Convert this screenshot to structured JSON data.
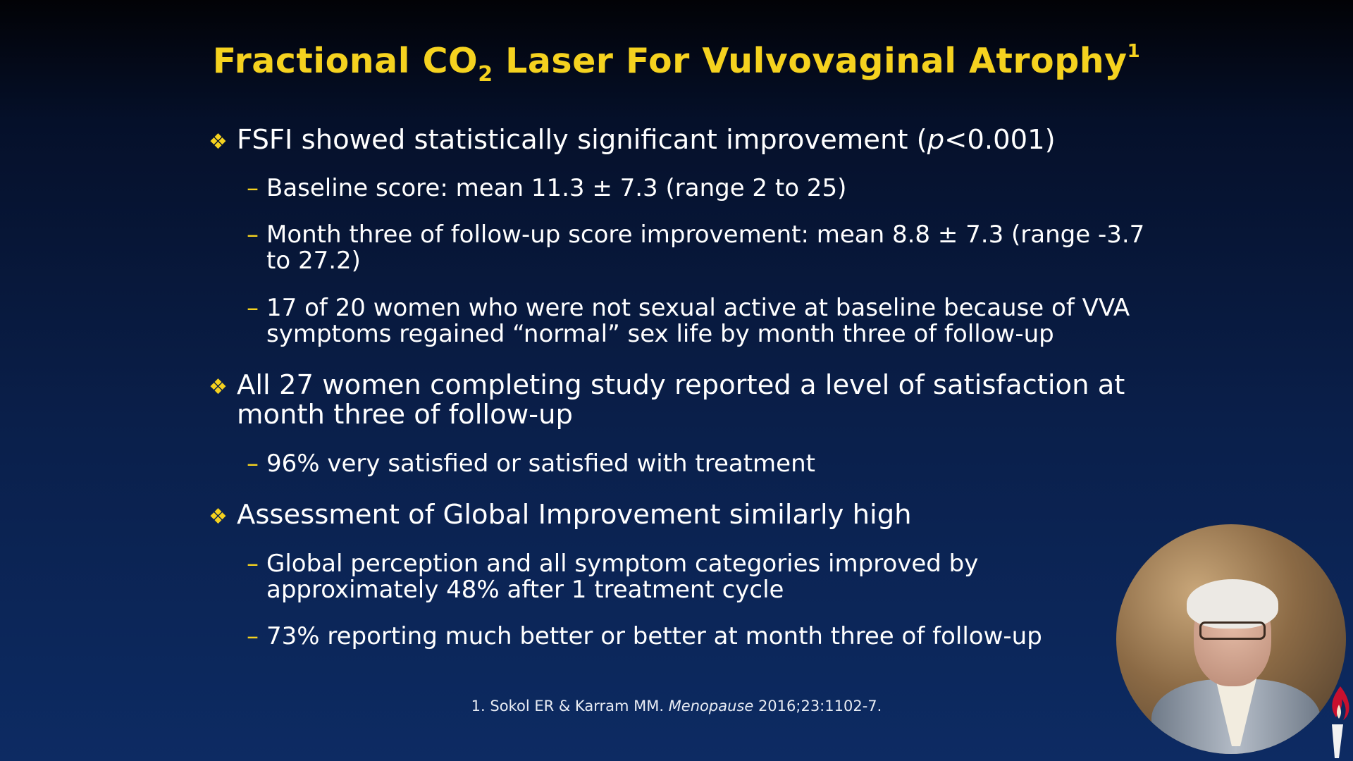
{
  "slide": {
    "title": {
      "part1": "Fractional CO",
      "subscript": "2",
      "part2": " Laser For Vulvovaginal Atrophy",
      "superscript": "1"
    },
    "bullets": [
      {
        "marker": "❖",
        "text_pre": "FSFI showed statistically significant improvement (",
        "text_italic": "p",
        "text_post": "<0.001)",
        "subs": [
          {
            "dash": "–",
            "text": "Baseline score: mean 11.3 ± 7.3 (range 2 to 25)"
          },
          {
            "dash": "–",
            "text": "Month three of follow-up score improvement: mean 8.8 ± 7.3 (range -3.7 to 27.2)"
          },
          {
            "dash": "–",
            "text": "17 of 20 women who were not sexual active at baseline because of VVA symptoms regained “normal” sex life by month three of follow-up"
          }
        ]
      },
      {
        "marker": "❖",
        "text": "All 27 women completing study reported a level of satisfaction at month three of follow-up",
        "subs": [
          {
            "dash": "–",
            "text": "96% very satisfied or satisfied with treatment"
          }
        ]
      },
      {
        "marker": "❖",
        "text": "Assessment of Global Improvement similarly high",
        "subs": [
          {
            "dash": "–",
            "text": "Global perception and all symptom categories improved by approximately 48% after 1 treatment cycle"
          },
          {
            "dash": "–",
            "text": "73% reporting much better or better at month three of follow-up"
          }
        ]
      }
    ],
    "reference": {
      "pre": "1. Sokol ER & Karram MM. ",
      "journal": "Menopause",
      "post": " 2016;23:1102-7."
    }
  },
  "colors": {
    "accent": "#f5d21f",
    "background_top": "#020206",
    "background_bottom": "#0d2b63",
    "text": "#ffffff"
  }
}
